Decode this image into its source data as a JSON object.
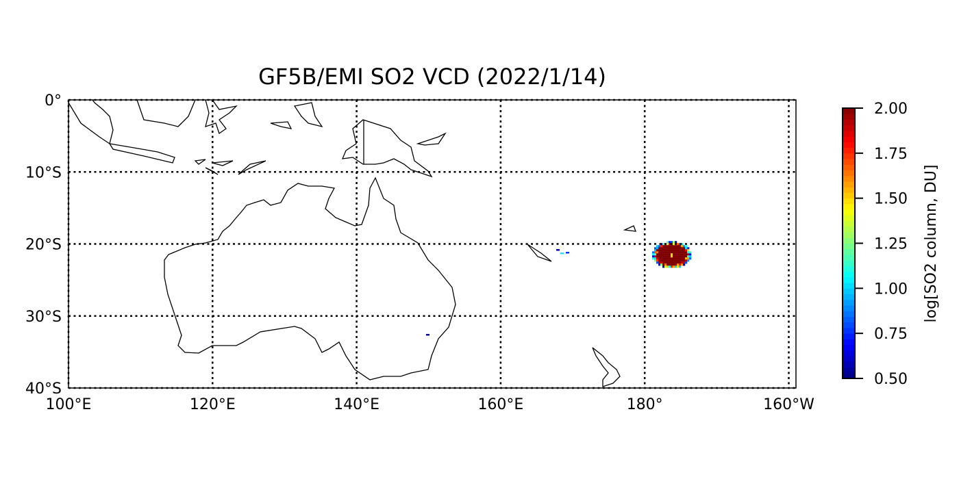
{
  "title": "GF5B/EMI SO2 VCD (2022/1/14)",
  "map": {
    "projection": "plate-carree",
    "lon_range": [
      100,
      201
    ],
    "lat_range": [
      -40,
      0
    ],
    "gridlines": "dotted",
    "x_ticks": [
      {
        "lon": 100,
        "label": "100°E"
      },
      {
        "lon": 120,
        "label": "120°E"
      },
      {
        "lon": 140,
        "label": "140°E"
      },
      {
        "lon": 160,
        "label": "160°E"
      },
      {
        "lon": 180,
        "label": "180°"
      },
      {
        "lon": 200,
        "label": "160°W"
      }
    ],
    "y_ticks": [
      {
        "lat": 0,
        "label": "0°"
      },
      {
        "lat": -10,
        "label": "10°S"
      },
      {
        "lat": -20,
        "label": "20°S"
      },
      {
        "lat": -30,
        "label": "30°S"
      },
      {
        "lat": -40,
        "label": "40°S"
      }
    ],
    "so2_plume": {
      "center_lon": 183.6,
      "center_lat": -21.4,
      "peak_value": 2.0
    }
  },
  "colorbar": {
    "label": "log[SO2 column, DU]",
    "colormap": "jet",
    "range": [
      0.5,
      2.0
    ],
    "ticks": [
      "0.50",
      "0.75",
      "1.00",
      "1.25",
      "1.50",
      "1.75",
      "2.00"
    ]
  }
}
